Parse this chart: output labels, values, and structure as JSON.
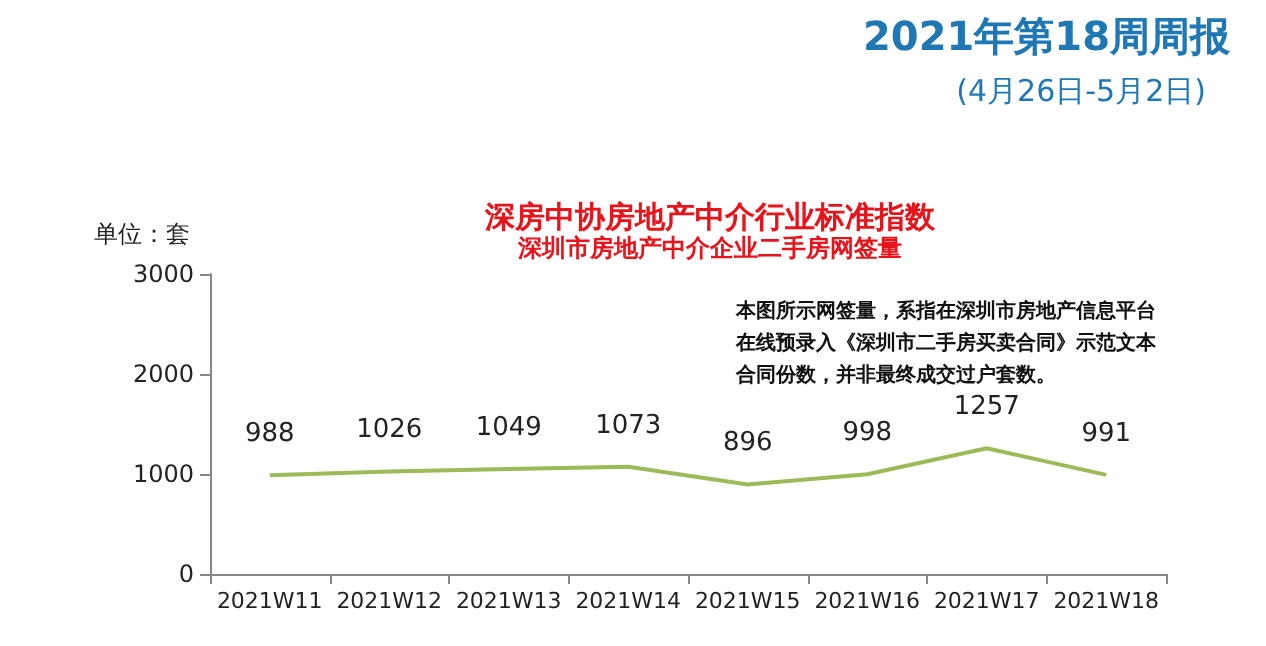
{
  "chart_data": {
    "type": "line",
    "title": "深房中协房地产中介行业标准指数",
    "subtitle": "深圳市房地产中介企业二手房网签量",
    "ylabel": "单位：套",
    "annotations": [
      "2021年第18周周报",
      "(4月26日-5月2日)",
      "本图所示网签量，系指在深圳市房地产信息平台在线预录入《深圳市二手房买卖合同》示范文本合同份数，并非最终成交过户套数。"
    ],
    "categories": [
      "2021W11",
      "2021W12",
      "2021W13",
      "2021W14",
      "2021W15",
      "2021W16",
      "2021W17",
      "2021W18"
    ],
    "series": [
      {
        "color": "#9bbb59",
        "values": [
          988,
          1026,
          1049,
          1073,
          896,
          998,
          1257,
          991
        ]
      }
    ],
    "ylim": [
      0,
      3000
    ],
    "yticks": [
      0,
      1000,
      2000,
      3000
    ],
    "grid": false,
    "marker": "none",
    "data_labels": true
  }
}
